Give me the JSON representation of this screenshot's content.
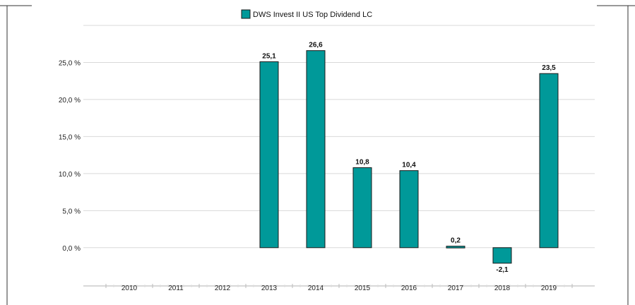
{
  "chart_data": {
    "type": "bar",
    "title": "",
    "xlabel": "",
    "ylabel": "",
    "categories": [
      "2010",
      "2011",
      "2012",
      "2013",
      "2014",
      "2015",
      "2016",
      "2017",
      "2018",
      "2019"
    ],
    "series": [
      {
        "name": "DWS Invest II US Top Dividend  LC",
        "values": [
          null,
          null,
          null,
          25.1,
          26.6,
          10.8,
          10.4,
          0.2,
          -2.1,
          23.5
        ],
        "data_labels": [
          "",
          "",
          "",
          "25,1",
          "26,6",
          "10,8",
          "10,4",
          "0,2",
          "-2,1",
          "23,5"
        ],
        "color": "#009999"
      }
    ],
    "yticks": [
      0,
      5,
      10,
      15,
      20,
      25
    ],
    "ytick_labels": [
      "0,0 %",
      "5,0 %",
      "10,0 %",
      "15,0 %",
      "20,0 %",
      "25,0 %"
    ],
    "ylim": [
      -4.5,
      30
    ],
    "grid": true,
    "legend_position": "top-center",
    "colors": {
      "bar": "#009999",
      "bar_stroke": "#1a1a1a",
      "grid": "#d9d9d9",
      "frame": "#333333"
    }
  }
}
